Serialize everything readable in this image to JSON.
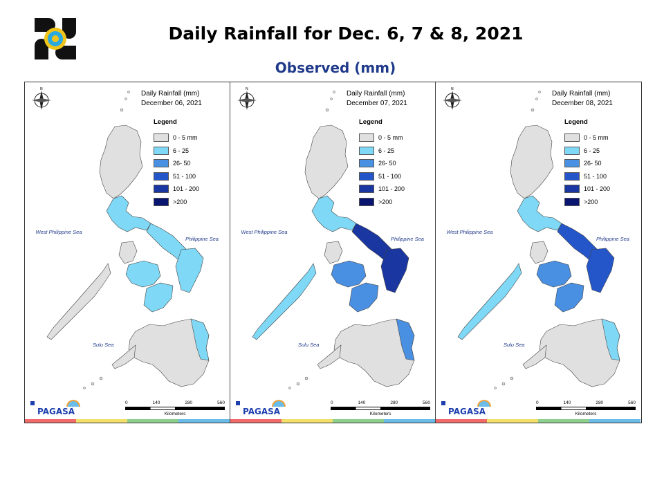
{
  "header": {
    "title": "Daily Rainfall for Dec. 6, 7 & 8, 2021",
    "subtitle": "Observed (mm)"
  },
  "colors": {
    "c0": "#e0e0e0",
    "c1": "#7fd8f5",
    "c2": "#4a90e2",
    "c3": "#2456c9",
    "c4": "#1a36a0",
    "c5": "#0a1570",
    "stripe": [
      "#f26b6b",
      "#f2e06b",
      "#8fd08f",
      "#6bbce8"
    ]
  },
  "panels": [
    {
      "title1": "Daily Rainfall (mm)",
      "title2": "December 06, 2021",
      "sea_wps": "West Philippine Sea",
      "sea_ps": "Philippine Sea",
      "sea_sulu": "Sulu Sea",
      "scale_ticks": [
        "0",
        "140",
        "280",
        "560"
      ],
      "scale_unit": "Kilometers",
      "brand": "PAGASA",
      "rain": {
        "north": "c1",
        "central": "c1",
        "east": "c1",
        "visayas": "c1",
        "mindanao": "c1"
      }
    },
    {
      "title1": "Daily Rainfall (mm)",
      "title2": "December 07, 2021",
      "sea_wps": "West Philippine Sea",
      "sea_ps": "Philippine Sea",
      "sea_sulu": "Sulu Sea",
      "scale_ticks": [
        "0",
        "140",
        "280",
        "560"
      ],
      "scale_unit": "Kilometers",
      "brand": "PAGASA",
      "rain": {
        "north": "c1",
        "central": "c1",
        "east": "c4",
        "visayas": "c2",
        "mindanao": "c2"
      }
    },
    {
      "title1": "Daily Rainfall (mm)",
      "title2": "December 08, 2021",
      "sea_wps": "West Philippine Sea",
      "sea_ps": "Philippine Sea",
      "sea_sulu": "Sulu Sea",
      "scale_ticks": [
        "0",
        "140",
        "280",
        "560"
      ],
      "scale_unit": "Kilometers",
      "brand": "PAGASA",
      "rain": {
        "north": "c1",
        "central": "c1",
        "east": "c3",
        "visayas": "c2",
        "mindanao": "c1"
      }
    }
  ],
  "legend": {
    "title": "Legend",
    "items": [
      {
        "label": "0 - 5 mm",
        "color": "c0"
      },
      {
        "label": "6 - 25",
        "color": "c1"
      },
      {
        "label": "26- 50",
        "color": "c2"
      },
      {
        "label": "51 - 100",
        "color": "c3"
      },
      {
        "label": "101 - 200",
        "color": "c4"
      },
      {
        "label": ">200",
        "color": "c5"
      }
    ]
  }
}
